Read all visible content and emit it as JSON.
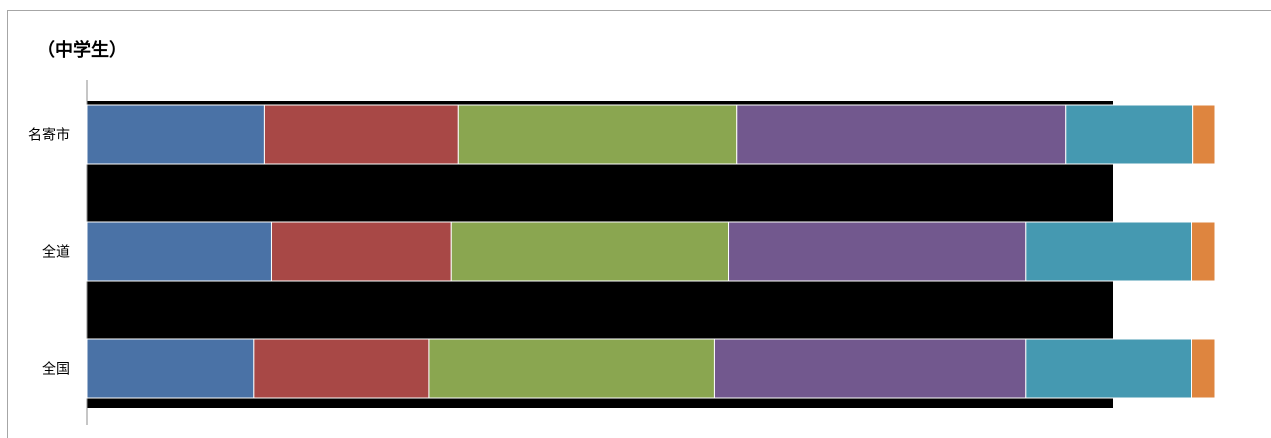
{
  "chart_data": {
    "type": "bar",
    "orientation": "horizontal",
    "stacked": true,
    "percent_stacked": true,
    "title": "（中学生）",
    "categories": [
      "名寄市",
      "全道",
      "全国"
    ],
    "series": [
      {
        "color": "#4a72a6",
        "values": [
          15.1,
          15.7,
          14.2
        ]
      },
      {
        "color": "#a84846",
        "values": [
          16.5,
          15.3,
          14.9
        ]
      },
      {
        "color": "#8aa650",
        "values": [
          23.7,
          23.6,
          24.3
        ]
      },
      {
        "color": "#72588e",
        "values": [
          28.0,
          25.3,
          26.5
        ]
      },
      {
        "color": "#4599b1",
        "values": [
          10.8,
          14.1,
          14.1
        ]
      },
      {
        "color": "#de853f",
        "values": [
          1.9,
          2.0,
          2.0
        ]
      }
    ],
    "xlim": [
      0,
      100
    ],
    "legend": "none",
    "grid": false
  }
}
